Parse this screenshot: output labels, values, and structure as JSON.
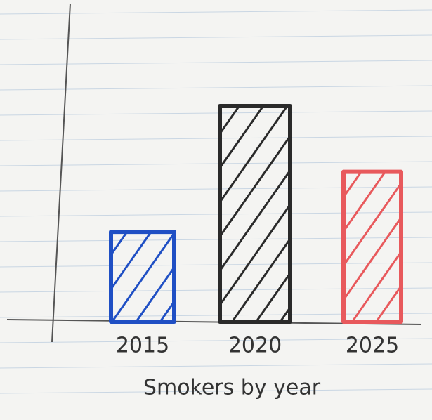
{
  "chart_data": {
    "type": "bar",
    "x_label": "Smokers by year",
    "categories": [
      "2015",
      "2020",
      "2025"
    ],
    "values": [
      127,
      305,
      212
    ],
    "colors": [
      "#1f4fc4",
      "#2a2a2a",
      "#e8595c"
    ],
    "ylim": [
      0,
      450
    ]
  }
}
